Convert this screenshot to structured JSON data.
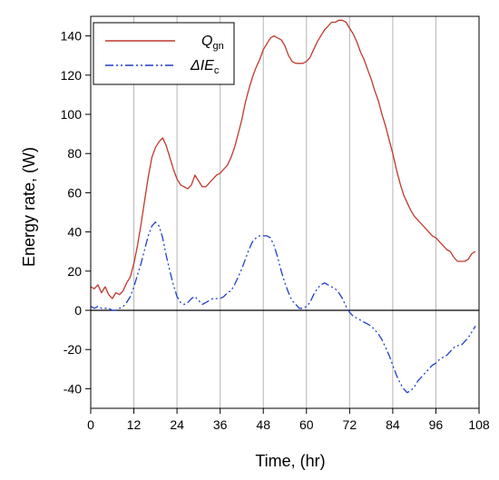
{
  "chart_data": {
    "type": "line",
    "xlabel": "Time, (hr)",
    "ylabel": "Energy rate, (W)",
    "xlim": [
      0,
      108
    ],
    "ylim": [
      -50,
      150
    ],
    "x_ticks": [
      0,
      12,
      24,
      36,
      48,
      60,
      72,
      84,
      96,
      108
    ],
    "y_ticks": [
      -40,
      -20,
      0,
      20,
      40,
      60,
      80,
      100,
      120,
      140
    ],
    "vertical_grid": true,
    "zero_line": true,
    "legend_position": "top-left",
    "series": [
      {
        "name": "Q",
        "name_sub": "gn",
        "color": "#c0392b",
        "style": "solid",
        "points": [
          [
            0,
            12
          ],
          [
            1,
            11
          ],
          [
            2,
            13
          ],
          [
            3,
            9
          ],
          [
            4,
            12
          ],
          [
            5,
            8
          ],
          [
            6,
            6
          ],
          [
            7,
            9
          ],
          [
            8,
            8
          ],
          [
            9,
            10
          ],
          [
            10,
            14
          ],
          [
            11,
            17
          ],
          [
            12,
            24
          ],
          [
            13,
            33
          ],
          [
            14,
            44
          ],
          [
            15,
            56
          ],
          [
            16,
            68
          ],
          [
            17,
            78
          ],
          [
            18,
            83
          ],
          [
            19,
            86
          ],
          [
            20,
            88
          ],
          [
            21,
            84
          ],
          [
            22,
            78
          ],
          [
            23,
            72
          ],
          [
            24,
            67
          ],
          [
            25,
            64
          ],
          [
            26,
            63
          ],
          [
            27,
            62
          ],
          [
            28,
            64
          ],
          [
            29,
            69
          ],
          [
            30,
            66
          ],
          [
            31,
            63
          ],
          [
            32,
            63
          ],
          [
            33,
            65
          ],
          [
            34,
            67
          ],
          [
            35,
            69
          ],
          [
            36,
            70
          ],
          [
            37,
            72
          ],
          [
            38,
            74
          ],
          [
            39,
            78
          ],
          [
            40,
            83
          ],
          [
            41,
            90
          ],
          [
            42,
            97
          ],
          [
            43,
            106
          ],
          [
            44,
            113
          ],
          [
            45,
            119
          ],
          [
            46,
            124
          ],
          [
            47,
            128
          ],
          [
            48,
            133
          ],
          [
            49,
            136
          ],
          [
            50,
            139
          ],
          [
            51,
            140
          ],
          [
            52,
            139
          ],
          [
            53,
            138
          ],
          [
            54,
            135
          ],
          [
            55,
            130
          ],
          [
            56,
            127
          ],
          [
            57,
            126
          ],
          [
            58,
            126
          ],
          [
            59,
            126
          ],
          [
            60,
            127
          ],
          [
            61,
            129
          ],
          [
            62,
            133
          ],
          [
            63,
            137
          ],
          [
            64,
            140
          ],
          [
            65,
            143
          ],
          [
            66,
            145
          ],
          [
            67,
            147
          ],
          [
            68,
            147
          ],
          [
            69,
            148
          ],
          [
            70,
            148
          ],
          [
            71,
            147
          ],
          [
            72,
            144
          ],
          [
            73,
            141
          ],
          [
            74,
            137
          ],
          [
            75,
            132
          ],
          [
            76,
            128
          ],
          [
            77,
            123
          ],
          [
            78,
            118
          ],
          [
            79,
            112
          ],
          [
            80,
            107
          ],
          [
            81,
            100
          ],
          [
            82,
            94
          ],
          [
            83,
            87
          ],
          [
            84,
            80
          ],
          [
            85,
            72
          ],
          [
            86,
            65
          ],
          [
            87,
            59
          ],
          [
            88,
            55
          ],
          [
            89,
            51
          ],
          [
            90,
            48
          ],
          [
            91,
            46
          ],
          [
            92,
            44
          ],
          [
            93,
            42
          ],
          [
            94,
            40
          ],
          [
            95,
            38
          ],
          [
            96,
            37
          ],
          [
            97,
            35
          ],
          [
            98,
            33
          ],
          [
            99,
            31
          ],
          [
            100,
            30
          ],
          [
            101,
            27
          ],
          [
            102,
            25
          ],
          [
            103,
            25
          ],
          [
            104,
            25
          ],
          [
            105,
            26
          ],
          [
            106,
            29
          ],
          [
            107,
            30
          ]
        ]
      },
      {
        "name": "ΔIE",
        "name_sub": "c",
        "color": "#1f3fc8",
        "style": "dashdotdot",
        "points": [
          [
            0,
            2
          ],
          [
            1,
            1
          ],
          [
            2,
            2
          ],
          [
            3,
            1
          ],
          [
            4,
            1
          ],
          [
            5,
            1
          ],
          [
            6,
            0
          ],
          [
            7,
            0
          ],
          [
            8,
            1
          ],
          [
            9,
            2
          ],
          [
            10,
            4
          ],
          [
            11,
            7
          ],
          [
            12,
            12
          ],
          [
            13,
            18
          ],
          [
            14,
            24
          ],
          [
            15,
            31
          ],
          [
            16,
            38
          ],
          [
            17,
            43
          ],
          [
            18,
            45
          ],
          [
            19,
            43
          ],
          [
            20,
            37
          ],
          [
            21,
            28
          ],
          [
            22,
            20
          ],
          [
            23,
            13
          ],
          [
            24,
            7
          ],
          [
            25,
            4
          ],
          [
            26,
            3
          ],
          [
            27,
            4
          ],
          [
            28,
            6
          ],
          [
            29,
            7
          ],
          [
            30,
            5
          ],
          [
            31,
            3
          ],
          [
            32,
            4
          ],
          [
            33,
            5
          ],
          [
            34,
            6
          ],
          [
            35,
            6
          ],
          [
            36,
            6
          ],
          [
            37,
            7
          ],
          [
            38,
            9
          ],
          [
            39,
            10
          ],
          [
            40,
            13
          ],
          [
            41,
            17
          ],
          [
            42,
            21
          ],
          [
            43,
            26
          ],
          [
            44,
            31
          ],
          [
            45,
            35
          ],
          [
            46,
            37
          ],
          [
            47,
            38
          ],
          [
            48,
            38
          ],
          [
            49,
            38
          ],
          [
            50,
            37
          ],
          [
            51,
            33
          ],
          [
            52,
            27
          ],
          [
            53,
            20
          ],
          [
            54,
            14
          ],
          [
            55,
            9
          ],
          [
            56,
            5
          ],
          [
            57,
            3
          ],
          [
            58,
            1
          ],
          [
            59,
            1
          ],
          [
            60,
            2
          ],
          [
            61,
            4
          ],
          [
            62,
            8
          ],
          [
            63,
            11
          ],
          [
            64,
            13
          ],
          [
            65,
            14
          ],
          [
            66,
            13
          ],
          [
            67,
            12
          ],
          [
            68,
            11
          ],
          [
            69,
            9
          ],
          [
            70,
            6
          ],
          [
            71,
            2
          ],
          [
            72,
            -1
          ],
          [
            73,
            -3
          ],
          [
            74,
            -4
          ],
          [
            75,
            -5
          ],
          [
            76,
            -6
          ],
          [
            77,
            -7
          ],
          [
            78,
            -8
          ],
          [
            79,
            -10
          ],
          [
            80,
            -12
          ],
          [
            81,
            -15
          ],
          [
            82,
            -19
          ],
          [
            83,
            -23
          ],
          [
            84,
            -28
          ],
          [
            85,
            -33
          ],
          [
            86,
            -37
          ],
          [
            87,
            -40
          ],
          [
            88,
            -42
          ],
          [
            89,
            -41
          ],
          [
            90,
            -39
          ],
          [
            91,
            -36
          ],
          [
            92,
            -34
          ],
          [
            93,
            -32
          ],
          [
            94,
            -30
          ],
          [
            95,
            -28
          ],
          [
            96,
            -27
          ],
          [
            97,
            -25
          ],
          [
            98,
            -24
          ],
          [
            99,
            -23
          ],
          [
            100,
            -21
          ],
          [
            101,
            -19
          ],
          [
            102,
            -18
          ],
          [
            103,
            -18
          ],
          [
            104,
            -16
          ],
          [
            105,
            -14
          ],
          [
            106,
            -11
          ],
          [
            107,
            -8
          ]
        ]
      }
    ]
  }
}
